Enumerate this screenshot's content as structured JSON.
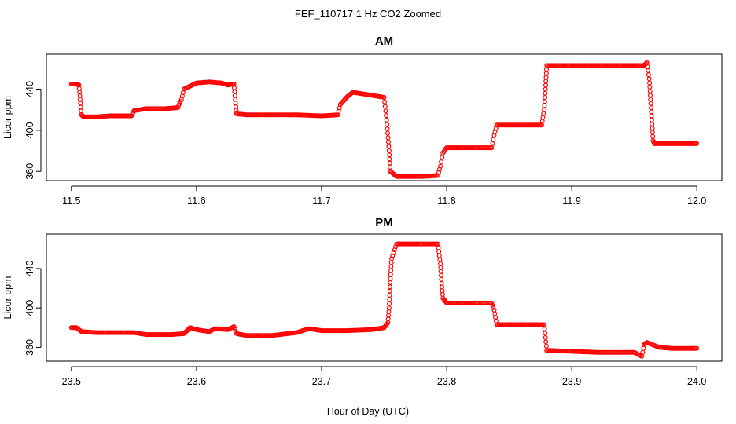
{
  "figure": {
    "title": "FEF_110717  1 Hz CO2 Zoomed",
    "xlabel": "Hour of Day (UTC)"
  },
  "chart_data": [
    {
      "type": "scatter",
      "title": "AM",
      "ylabel": "Licor ppm",
      "xlim": [
        11.48,
        12.02
      ],
      "ylim": [
        351,
        474
      ],
      "x_ticks": [
        "11.5",
        "11.6",
        "11.7",
        "11.8",
        "11.9",
        "12.0"
      ],
      "x_tick_values": [
        11.5,
        11.6,
        11.7,
        11.8,
        11.9,
        12.0
      ],
      "y_ticks": [
        "360",
        "400",
        "440"
      ],
      "y_tick_values": [
        360,
        400,
        440
      ],
      "marker_color": "#ff0000",
      "series": [
        {
          "points": [
            [
              11.5,
              445
            ],
            [
              11.503,
              445
            ],
            [
              11.506,
              444
            ],
            [
              11.507,
              430
            ],
            [
              11.508,
              415
            ],
            [
              11.51,
              413
            ],
            [
              11.52,
              413
            ],
            [
              11.53,
              414
            ],
            [
              11.54,
              414
            ],
            [
              11.548,
              414
            ],
            [
              11.55,
              419
            ],
            [
              11.56,
              421
            ],
            [
              11.575,
              421
            ],
            [
              11.585,
              422
            ],
            [
              11.588,
              430
            ],
            [
              11.59,
              440
            ],
            [
              11.6,
              446
            ],
            [
              11.61,
              447
            ],
            [
              11.62,
              446
            ],
            [
              11.625,
              444
            ],
            [
              11.63,
              445
            ],
            [
              11.631,
              430
            ],
            [
              11.632,
              416
            ],
            [
              11.64,
              415
            ],
            [
              11.66,
              415
            ],
            [
              11.68,
              415
            ],
            [
              11.7,
              414
            ],
            [
              11.713,
              415
            ],
            [
              11.715,
              425
            ],
            [
              11.72,
              432
            ],
            [
              11.725,
              437
            ],
            [
              11.73,
              436
            ],
            [
              11.74,
              434
            ],
            [
              11.75,
              432
            ],
            [
              11.752,
              410
            ],
            [
              11.754,
              380
            ],
            [
              11.755,
              360
            ],
            [
              11.76,
              355
            ],
            [
              11.78,
              355
            ],
            [
              11.793,
              356
            ],
            [
              11.795,
              365
            ],
            [
              11.797,
              378
            ],
            [
              11.8,
              383
            ],
            [
              11.82,
              383
            ],
            [
              11.836,
              383
            ],
            [
              11.838,
              395
            ],
            [
              11.84,
              405
            ],
            [
              11.86,
              405
            ],
            [
              11.876,
              405
            ],
            [
              11.878,
              420
            ],
            [
              11.879,
              440
            ],
            [
              11.88,
              463
            ],
            [
              11.9,
              463
            ],
            [
              11.92,
              463
            ],
            [
              11.94,
              463
            ],
            [
              11.958,
              463
            ],
            [
              11.96,
              466
            ],
            [
              11.962,
              450
            ],
            [
              11.963,
              430
            ],
            [
              11.964,
              410
            ],
            [
              11.965,
              390
            ],
            [
              11.966,
              387
            ],
            [
              11.98,
              387
            ],
            [
              12.0,
              387
            ]
          ]
        }
      ]
    },
    {
      "type": "scatter",
      "title": "PM",
      "ylabel": "Licor ppm",
      "xlim": [
        23.48,
        24.02
      ],
      "ylim": [
        346,
        475
      ],
      "x_ticks": [
        "23.5",
        "23.6",
        "23.7",
        "23.8",
        "23.9",
        "24.0"
      ],
      "x_tick_values": [
        23.5,
        23.6,
        23.7,
        23.8,
        23.9,
        24.0
      ],
      "y_ticks": [
        "360",
        "400",
        "440"
      ],
      "y_tick_values": [
        360,
        400,
        440
      ],
      "marker_color": "#ff0000",
      "series": [
        {
          "points": [
            [
              23.5,
              380
            ],
            [
              23.504,
              380
            ],
            [
              23.508,
              376
            ],
            [
              23.52,
              375
            ],
            [
              23.54,
              375
            ],
            [
              23.55,
              375
            ],
            [
              23.56,
              373
            ],
            [
              23.58,
              373
            ],
            [
              23.59,
              374
            ],
            [
              23.595,
              380
            ],
            [
              23.6,
              378
            ],
            [
              23.61,
              376
            ],
            [
              23.615,
              379
            ],
            [
              23.625,
              378
            ],
            [
              23.63,
              381
            ],
            [
              23.632,
              374
            ],
            [
              23.64,
              372
            ],
            [
              23.66,
              372
            ],
            [
              23.68,
              375
            ],
            [
              23.69,
              379
            ],
            [
              23.7,
              377
            ],
            [
              23.72,
              377
            ],
            [
              23.74,
              378
            ],
            [
              23.75,
              380
            ],
            [
              23.753,
              385
            ],
            [
              23.754,
              400
            ],
            [
              23.755,
              430
            ],
            [
              23.756,
              450
            ],
            [
              23.76,
              465
            ],
            [
              23.78,
              465
            ],
            [
              23.793,
              465
            ],
            [
              23.795,
              445
            ],
            [
              23.796,
              425
            ],
            [
              23.797,
              410
            ],
            [
              23.8,
              405
            ],
            [
              23.82,
              405
            ],
            [
              23.836,
              405
            ],
            [
              23.838,
              398
            ],
            [
              23.84,
              383
            ],
            [
              23.86,
              383
            ],
            [
              23.878,
              383
            ],
            [
              23.879,
              370
            ],
            [
              23.88,
              357
            ],
            [
              23.9,
              356
            ],
            [
              23.92,
              355
            ],
            [
              23.95,
              355
            ],
            [
              23.956,
              351
            ],
            [
              23.958,
              363
            ],
            [
              23.96,
              365
            ],
            [
              23.97,
              360
            ],
            [
              23.98,
              359
            ],
            [
              24.0,
              359
            ]
          ]
        }
      ]
    }
  ]
}
